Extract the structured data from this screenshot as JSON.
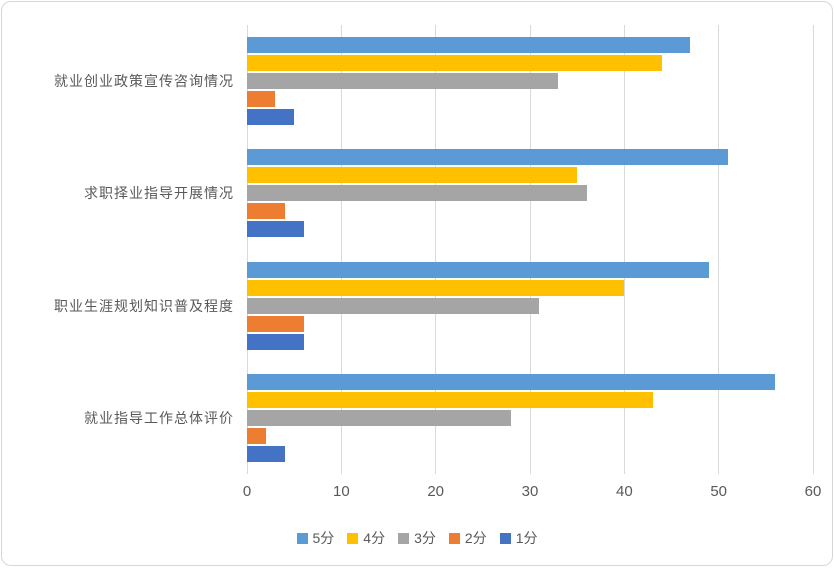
{
  "chart_data": {
    "type": "bar",
    "orientation": "horizontal",
    "title": "",
    "xlabel": "",
    "ylabel": "",
    "category_order": "top-to-bottom",
    "categories": [
      "就业创业政策宣传咨询情况",
      "求职择业指导开展情况",
      "职业生涯规划知识普及程度",
      "就业指导工作总体评价"
    ],
    "series": [
      {
        "name": "5分",
        "color": "#5b9bd5",
        "values": [
          47,
          51,
          49,
          56
        ]
      },
      {
        "name": "4分",
        "color": "#ffc000",
        "values": [
          44,
          35,
          40,
          43
        ]
      },
      {
        "name": "3分",
        "color": "#a5a5a5",
        "values": [
          33,
          36,
          31,
          28
        ]
      },
      {
        "name": "2分",
        "color": "#ed7d31",
        "values": [
          3,
          4,
          6,
          2
        ]
      },
      {
        "name": "1分",
        "color": "#4472c4",
        "values": [
          5,
          6,
          6,
          4
        ]
      }
    ],
    "x_axis": {
      "min": 0,
      "max": 60,
      "tick_step": 10,
      "tick_labels": [
        "0",
        "10",
        "20",
        "30",
        "40",
        "50",
        "60"
      ]
    },
    "grid": true,
    "gridline_color": "#d9d9d9",
    "axis_text_color": "#595959",
    "legend_position": "bottom",
    "legend_entries": [
      "5分",
      "4分",
      "3分",
      "2分",
      "1分"
    ]
  }
}
